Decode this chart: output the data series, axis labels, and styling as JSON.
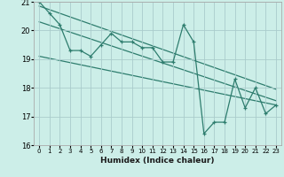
{
  "xlabel": "Humidex (Indice chaleur)",
  "bg_color": "#cceee8",
  "grid_color": "#aacccc",
  "line_color": "#2e7d6e",
  "spine_color": "#aaaaaa",
  "xlim": [
    -0.5,
    23.5
  ],
  "ylim": [
    16,
    21
  ],
  "xticks": [
    0,
    1,
    2,
    3,
    4,
    5,
    6,
    7,
    8,
    9,
    10,
    11,
    12,
    13,
    14,
    15,
    16,
    17,
    18,
    19,
    20,
    21,
    22,
    23
  ],
  "yticks": [
    16,
    17,
    18,
    19,
    20,
    21
  ],
  "data_x": [
    0,
    1,
    2,
    3,
    4,
    5,
    6,
    7,
    8,
    9,
    10,
    11,
    12,
    13,
    14,
    15,
    16,
    17,
    18,
    19,
    20,
    21,
    22,
    23
  ],
  "data_y": [
    21.0,
    20.6,
    20.2,
    19.3,
    19.3,
    19.1,
    19.5,
    19.9,
    19.6,
    19.6,
    19.4,
    19.4,
    18.9,
    18.9,
    20.2,
    19.6,
    16.4,
    16.8,
    16.8,
    18.3,
    17.3,
    18.0,
    17.1,
    17.4
  ],
  "trend1_x": [
    0,
    23
  ],
  "trend1_y": [
    20.85,
    17.95
  ],
  "trend2_x": [
    0,
    23
  ],
  "trend2_y": [
    20.3,
    17.55
  ],
  "trend3_x": [
    0,
    23
  ],
  "trend3_y": [
    19.1,
    17.4
  ]
}
